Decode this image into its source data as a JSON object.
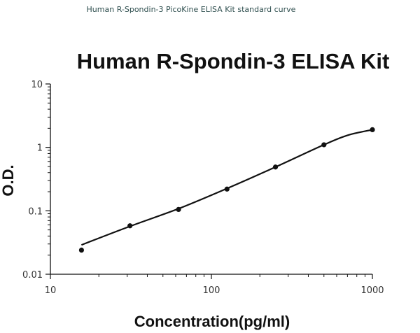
{
  "caption": "Human R-Spondin-3 PicoKine ELISA Kit standard curve",
  "colors": {
    "caption": "#2f4f4f",
    "ink": "#111111"
  },
  "chart_data": {
    "type": "scatter",
    "title": "Human R-Spondin-3 ELISA Kit",
    "xlabel": "Concentration(pg/ml)",
    "ylabel": "O.D.",
    "xscale": "log",
    "yscale": "log",
    "xlim": [
      10,
      1000
    ],
    "ylim": [
      0.01,
      10
    ],
    "x_ticks": [
      "10",
      "100",
      "1000"
    ],
    "y_ticks": [
      "0.01",
      "0.1",
      "1",
      "10"
    ],
    "grid": false,
    "legend": "none",
    "series": [
      {
        "points": [
          {
            "x": 15.6,
            "y": 0.024
          },
          {
            "x": 31.2,
            "y": 0.058
          },
          {
            "x": 62.5,
            "y": 0.105
          },
          {
            "x": 125,
            "y": 0.22
          },
          {
            "x": 250,
            "y": 0.49
          },
          {
            "x": 500,
            "y": 1.1
          },
          {
            "x": 1000,
            "y": 1.9
          }
        ],
        "curve": [
          {
            "x": 15.6,
            "y": 0.029
          },
          {
            "x": 31.2,
            "y": 0.057
          },
          {
            "x": 62.5,
            "y": 0.108
          },
          {
            "x": 125,
            "y": 0.225
          },
          {
            "x": 250,
            "y": 0.49
          },
          {
            "x": 500,
            "y": 1.1
          },
          {
            "x": 700,
            "y": 1.55
          },
          {
            "x": 1000,
            "y": 1.9
          }
        ]
      }
    ]
  }
}
